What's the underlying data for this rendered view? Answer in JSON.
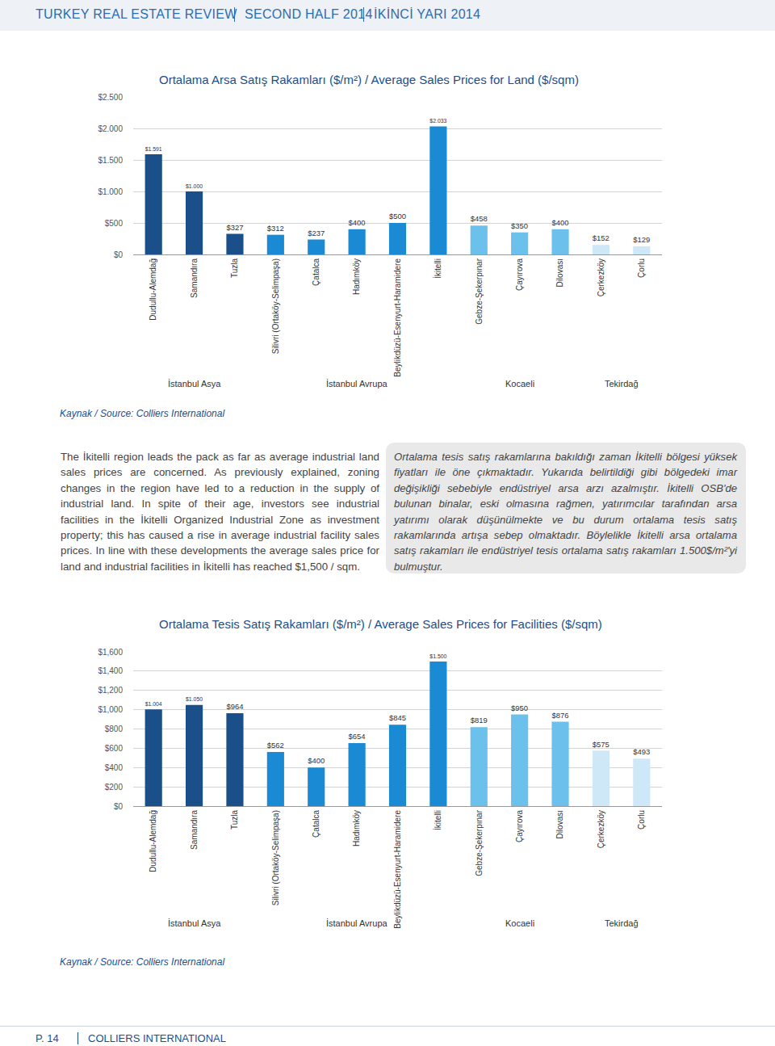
{
  "header": [
    "TURKEY REAL ESTATE REVIEW",
    "SECOND HALF 2014",
    "İKİNCİ YARI 2014"
  ],
  "chart_data": [
    {
      "type": "bar",
      "title": "Ortalama Arsa Satış Rakamları ($/m²) / Average Sales Prices for Land ($/sqm)",
      "categories": [
        "Dudullu-Alemdağ",
        "Samandıra",
        "Tuzla",
        "Silivri (Ortaköy-Selimpaşa)",
        "Çatalca",
        "Hadımköy",
        "Beylikdüzü-Esenyurt-Haramidere",
        "İkitelli",
        "Gebze-Şekerpınar",
        "Çayırova",
        "Dilovası",
        "Çerkezköy",
        "Çorlu"
      ],
      "series": [
        {
          "name": "İstanbul Asya",
          "color": "#1b4f8a",
          "values": [
            1591,
            1000,
            327,
            null,
            null,
            null,
            null,
            null,
            null,
            null,
            null,
            null,
            null
          ],
          "value_labels": [
            "$1.591",
            "$1.000",
            "$327",
            null,
            null,
            null,
            null,
            null,
            null,
            null,
            null,
            null,
            null
          ]
        },
        {
          "name": "İstanbul Avrupa",
          "color": "#1a8ad4",
          "values": [
            null,
            null,
            null,
            312,
            237,
            400,
            500,
            2033,
            null,
            null,
            null,
            null,
            null
          ],
          "value_labels": [
            null,
            null,
            null,
            "$312",
            "$237",
            "$400",
            "$500",
            "$2.033",
            null,
            null,
            null,
            null,
            null
          ]
        },
        {
          "name": "Kocaeli",
          "color": "#6cc0ec",
          "values": [
            null,
            null,
            null,
            null,
            null,
            null,
            null,
            null,
            458,
            350,
            400,
            null,
            null
          ],
          "value_labels": [
            null,
            null,
            null,
            null,
            null,
            null,
            null,
            null,
            "$458",
            "$350",
            "$400",
            null,
            null
          ]
        },
        {
          "name": "Tekirdağ",
          "color": "#cfe8f8",
          "values": [
            null,
            null,
            null,
            null,
            null,
            null,
            null,
            null,
            null,
            null,
            null,
            152,
            129
          ],
          "value_labels": [
            null,
            null,
            null,
            null,
            null,
            null,
            null,
            null,
            null,
            null,
            null,
            "$152",
            "$129"
          ]
        }
      ],
      "ylim": [
        0,
        2500
      ],
      "yticks": [
        {
          "value": 0,
          "label": "$0"
        },
        {
          "value": 500,
          "label": "$500"
        },
        {
          "value": 1000,
          "label": "$1.000"
        },
        {
          "value": 1500,
          "label": "$1.500"
        },
        {
          "value": 2000,
          "label": "$2.000"
        },
        {
          "value": 2500,
          "label": "$2.500"
        }
      ],
      "grid": true,
      "data_labels": true
    },
    {
      "type": "bar",
      "title": "Ortalama Tesis Satış Rakamları ($/m²) / Average Sales Prices for Facilities ($/sqm)",
      "categories": [
        "Dudullu-Alemdağ",
        "Samandıra",
        "Tuzla",
        "Silivri (Ortaköy-Selimpaşa)",
        "Çatalca",
        "Hadımköy",
        "Beylikdüzü-Esenyurt-Haramidere",
        "İkitelli",
        "Gebze-Şekerpınar",
        "Çayırova",
        "Dilovası",
        "Çerkezköy",
        "Çorlu"
      ],
      "series": [
        {
          "name": "İstanbul Asya",
          "color": "#1b4f8a",
          "values": [
            1004,
            1050,
            964,
            null,
            null,
            null,
            null,
            null,
            null,
            null,
            null,
            null,
            null
          ],
          "value_labels": [
            "$1.004",
            "$1.050",
            "$964",
            null,
            null,
            null,
            null,
            null,
            null,
            null,
            null,
            null,
            null
          ]
        },
        {
          "name": "İstanbul Avrupa",
          "color": "#1a8ad4",
          "values": [
            null,
            null,
            null,
            562,
            400,
            654,
            845,
            1500,
            null,
            null,
            null,
            null,
            null
          ],
          "value_labels": [
            null,
            null,
            null,
            "$562",
            "$400",
            "$654",
            "$845",
            "$1.500",
            null,
            null,
            null,
            null,
            null
          ]
        },
        {
          "name": "Kocaeli",
          "color": "#6cc0ec",
          "values": [
            null,
            null,
            null,
            null,
            null,
            null,
            null,
            null,
            819,
            950,
            876,
            null,
            null
          ],
          "value_labels": [
            null,
            null,
            null,
            null,
            null,
            null,
            null,
            null,
            "$819",
            "$950",
            "$876",
            null,
            null
          ]
        },
        {
          "name": "Tekirdağ",
          "color": "#cfe8f8",
          "values": [
            null,
            null,
            null,
            null,
            null,
            null,
            null,
            null,
            null,
            null,
            null,
            575,
            493
          ],
          "value_labels": [
            null,
            null,
            null,
            null,
            null,
            null,
            null,
            null,
            null,
            null,
            null,
            "$575",
            "$493"
          ]
        }
      ],
      "ylim": [
        0,
        1600
      ],
      "yticks": [
        {
          "value": 0,
          "label": "$0"
        },
        {
          "value": 200,
          "label": "$200"
        },
        {
          "value": 400,
          "label": "$400"
        },
        {
          "value": 600,
          "label": "$600"
        },
        {
          "value": 800,
          "label": "$800"
        },
        {
          "value": 1000,
          "label": "$1,000"
        },
        {
          "value": 1200,
          "label": "$1,200"
        },
        {
          "value": 1400,
          "label": "$1,400"
        },
        {
          "value": 1600,
          "label": "$1,600"
        }
      ],
      "grid": true,
      "data_labels": true
    }
  ],
  "sources": [
    "Kaynak / Source: Colliers International",
    "Kaynak / Source: Colliers International"
  ],
  "text": {
    "en": "The İkitelli region leads the pack as far as average industrial land sales prices are concerned. As previously explained, zoning changes in the region have led to a reduction in the supply of industrial land. In spite of their age, investors see industrial facilities in the İkitelli Organized Industrial Zone as investment property; this has caused a rise in average industrial facility sales prices. In line with these developments the average sales price for land and industrial facilities in İkitelli has reached $1,500 / sqm.",
    "tr": "Ortalama tesis satış rakamlarına bakıldığı zaman İkitelli bölgesi yüksek fiyatları ile öne çıkmaktadır. Yukarıda belirtildiği gibi bölgedeki imar değişikliği sebebiyle endüstriyel arsa arzı azalmıştır. İkitelli OSB'de bulunan binalar, eski olmasına rağmen, yatırımcılar tarafından arsa yatırımı olarak düşünülmekte ve bu durum ortalama tesis satış rakamlarında artışa sebep olmaktadır. Böylelikle İkitelli arsa ortalama satış rakamları ile endüstriyel tesis ortalama satış rakamları 1.500$/m²'yi bulmuştur."
  },
  "footer": [
    "P. 14",
    "COLLIERS INTERNATIONAL"
  ]
}
